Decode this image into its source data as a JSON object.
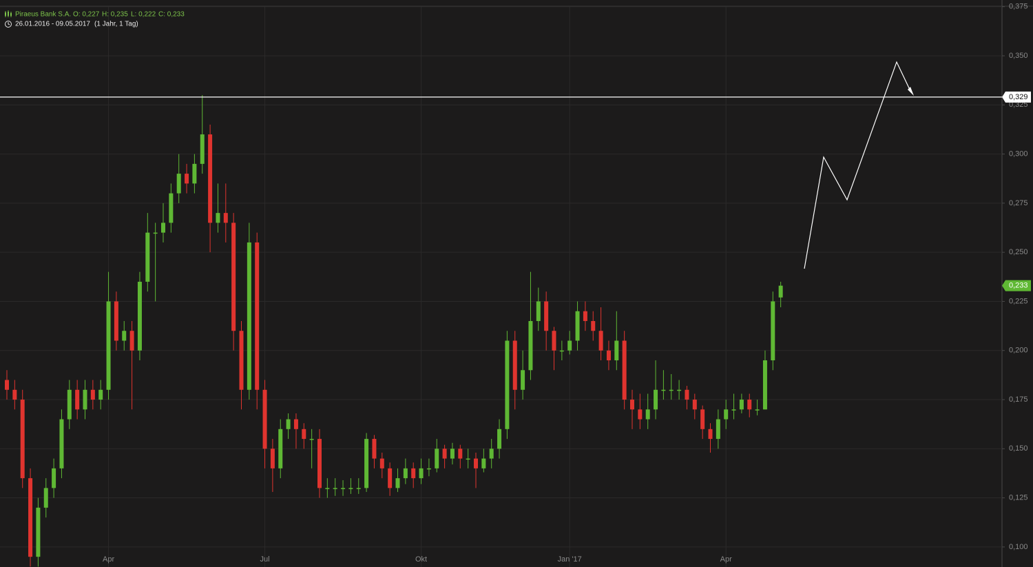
{
  "chart_data": {
    "type": "candlestick",
    "name": "Piraeus Bank S.A.",
    "ohlc_labels": [
      "O: 0,227",
      "H: 0,235",
      "L: 0,222",
      "C: 0,233"
    ],
    "range": "26.01.2016 - 09.05.2017",
    "period": "(1 Jahr, 1 Tag)",
    "up_color": "#5fb834",
    "down_color": "#e0342f",
    "grid": true,
    "ylim": [
      0.0898,
      0.3749
    ],
    "yticks": [
      {
        "value": 0.1,
        "label": "0,100"
      },
      {
        "value": 0.125,
        "label": "0,125"
      },
      {
        "value": 0.15,
        "label": "0,150"
      },
      {
        "value": 0.175,
        "label": "0,175"
      },
      {
        "value": 0.2,
        "label": "0,200"
      },
      {
        "value": 0.225,
        "label": "0,225"
      },
      {
        "value": 0.25,
        "label": "0,250"
      },
      {
        "value": 0.275,
        "label": "0,275"
      },
      {
        "value": 0.3,
        "label": "0,300"
      },
      {
        "value": 0.325,
        "label": "0,325"
      },
      {
        "value": 0.35,
        "label": "0,350"
      },
      {
        "value": 0.375,
        "label": "0,375"
      }
    ],
    "hline": {
      "value": 0.329,
      "label": "0,329"
    },
    "last_label": "0,233",
    "categories": [
      null,
      null,
      null,
      null,
      null,
      null,
      null,
      null,
      null,
      null,
      null,
      null,
      null,
      "Apr",
      null,
      null,
      null,
      null,
      null,
      null,
      null,
      null,
      null,
      null,
      null,
      null,
      null,
      null,
      null,
      null,
      null,
      null,
      null,
      "Jul",
      null,
      null,
      null,
      null,
      null,
      null,
      null,
      null,
      null,
      null,
      null,
      null,
      null,
      null,
      null,
      null,
      null,
      null,
      null,
      "Okt",
      null,
      null,
      null,
      null,
      null,
      null,
      null,
      null,
      null,
      null,
      null,
      null,
      null,
      null,
      null,
      null,
      null,
      null,
      "Jan '17",
      null,
      null,
      null,
      null,
      null,
      null,
      null,
      null,
      null,
      null,
      null,
      null,
      null,
      null,
      null,
      null,
      null,
      null,
      null,
      "Apr",
      null,
      null,
      null,
      null,
      null,
      null,
      null
    ],
    "open": [
      0.185,
      0.18,
      0.175,
      0.135,
      0.095,
      0.12,
      0.13,
      0.14,
      0.165,
      0.18,
      0.17,
      0.18,
      0.175,
      0.18,
      0.225,
      0.205,
      0.21,
      0.2,
      0.235,
      0.26,
      0.26,
      0.265,
      0.28,
      0.29,
      0.285,
      0.295,
      0.31,
      0.265,
      0.27,
      0.265,
      0.21,
      0.18,
      0.255,
      0.18,
      0.15,
      0.14,
      0.16,
      0.165,
      0.16,
      0.155,
      0.155,
      0.13,
      0.13,
      0.13,
      0.13,
      0.13,
      0.13,
      0.155,
      0.145,
      0.14,
      0.13,
      0.135,
      0.14,
      0.135,
      0.14,
      0.14,
      0.15,
      0.145,
      0.15,
      0.145,
      0.145,
      0.14,
      0.145,
      0.15,
      0.16,
      0.205,
      0.18,
      0.19,
      0.215,
      0.225,
      0.21,
      0.2,
      0.2,
      0.205,
      0.22,
      0.215,
      0.21,
      0.2,
      0.195,
      0.205,
      0.175,
      0.17,
      0.165,
      0.17,
      0.18,
      0.18,
      0.18,
      0.18,
      0.175,
      0.17,
      0.16,
      0.155,
      0.165,
      0.17,
      0.17,
      0.175,
      0.17,
      0.17,
      0.195,
      0.227
    ],
    "high": [
      0.19,
      0.185,
      0.18,
      0.14,
      0.125,
      0.135,
      0.145,
      0.17,
      0.185,
      0.185,
      0.185,
      0.185,
      0.185,
      0.24,
      0.23,
      0.215,
      0.215,
      0.24,
      0.27,
      0.265,
      0.275,
      0.285,
      0.3,
      0.295,
      0.3,
      0.33,
      0.315,
      0.285,
      0.285,
      0.27,
      0.215,
      0.265,
      0.26,
      0.185,
      0.155,
      0.165,
      0.168,
      0.168,
      0.163,
      0.16,
      0.16,
      0.135,
      0.135,
      0.134,
      0.135,
      0.135,
      0.158,
      0.157,
      0.148,
      0.143,
      0.14,
      0.145,
      0.143,
      0.145,
      0.145,
      0.155,
      0.152,
      0.153,
      0.152,
      0.15,
      0.148,
      0.15,
      0.155,
      0.165,
      0.21,
      0.21,
      0.2,
      0.24,
      0.232,
      0.23,
      0.212,
      0.205,
      0.21,
      0.225,
      0.225,
      0.22,
      0.222,
      0.205,
      0.22,
      0.21,
      0.18,
      0.178,
      0.178,
      0.195,
      0.19,
      0.188,
      0.185,
      0.182,
      0.178,
      0.172,
      0.163,
      0.17,
      0.175,
      0.178,
      0.178,
      0.178,
      0.175,
      0.2,
      0.23,
      0.235
    ],
    "low": [
      0.175,
      0.17,
      0.13,
      0.09,
      0.09,
      0.115,
      0.125,
      0.135,
      0.16,
      0.165,
      0.165,
      0.17,
      0.17,
      0.175,
      0.2,
      0.2,
      0.17,
      0.195,
      0.23,
      0.225,
      0.255,
      0.26,
      0.275,
      0.28,
      0.28,
      0.29,
      0.25,
      0.26,
      0.255,
      0.2,
      0.17,
      0.175,
      0.17,
      0.14,
      0.128,
      0.135,
      0.155,
      0.15,
      0.15,
      0.14,
      0.125,
      0.125,
      0.126,
      0.126,
      0.127,
      0.127,
      0.128,
      0.14,
      0.135,
      0.126,
      0.128,
      0.132,
      0.13,
      0.132,
      0.136,
      0.138,
      0.14,
      0.142,
      0.14,
      0.14,
      0.13,
      0.138,
      0.14,
      0.145,
      0.155,
      0.17,
      0.175,
      0.185,
      0.21,
      0.2,
      0.19,
      0.195,
      0.198,
      0.2,
      0.21,
      0.205,
      0.195,
      0.19,
      0.19,
      0.17,
      0.16,
      0.16,
      0.16,
      0.165,
      0.175,
      0.175,
      0.175,
      0.17,
      0.165,
      0.155,
      0.148,
      0.15,
      0.16,
      0.165,
      0.168,
      0.166,
      0.167,
      0.17,
      0.19,
      0.222
    ],
    "close": [
      0.18,
      0.175,
      0.135,
      0.095,
      0.12,
      0.13,
      0.14,
      0.165,
      0.18,
      0.17,
      0.18,
      0.175,
      0.18,
      0.225,
      0.205,
      0.21,
      0.2,
      0.235,
      0.26,
      0.26,
      0.265,
      0.28,
      0.29,
      0.285,
      0.295,
      0.31,
      0.265,
      0.27,
      0.265,
      0.21,
      0.18,
      0.255,
      0.18,
      0.15,
      0.14,
      0.16,
      0.165,
      0.16,
      0.155,
      0.155,
      0.13,
      0.13,
      0.13,
      0.13,
      0.13,
      0.13,
      0.155,
      0.145,
      0.14,
      0.13,
      0.135,
      0.14,
      0.135,
      0.14,
      0.14,
      0.15,
      0.145,
      0.15,
      0.145,
      0.145,
      0.14,
      0.145,
      0.15,
      0.16,
      0.205,
      0.18,
      0.19,
      0.215,
      0.225,
      0.21,
      0.2,
      0.2,
      0.205,
      0.22,
      0.215,
      0.21,
      0.2,
      0.195,
      0.205,
      0.175,
      0.17,
      0.165,
      0.17,
      0.18,
      0.18,
      0.18,
      0.18,
      0.175,
      0.17,
      0.16,
      0.155,
      0.165,
      0.17,
      0.17,
      0.175,
      0.17,
      0.17,
      0.195,
      0.225,
      0.233
    ]
  }
}
